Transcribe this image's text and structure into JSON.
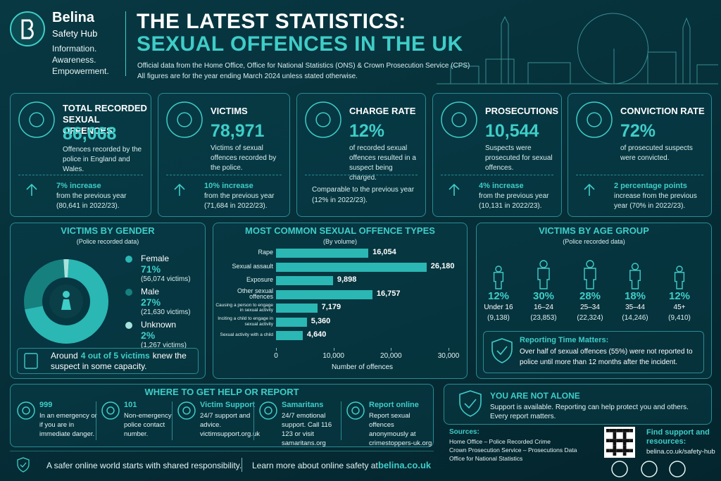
{
  "header": {
    "brand": "Belina",
    "brand_sub": "Safety Hub",
    "tagline": [
      "Information.",
      "Awareness.",
      "Empowerment."
    ],
    "title_1": "THE LATEST STATISTICS:",
    "title_2": "SEXUAL OFFENCES IN THE UK",
    "source_note": "Official data from the Home Office, Office for National Statistics (ONS) & Crown Prosecution Service (CPS)",
    "period_note": "All figures are for the year ending March 2024 unless stated otherwise."
  },
  "stats": [
    {
      "title": "TOTAL RECORDED SEXUAL OFFENCES",
      "value": "86,068",
      "desc": "Offences recorded by the police in England and Wales.",
      "change": "7% increase",
      "change_desc": "from the previous year (80,641 in 2022/23)."
    },
    {
      "title": "VICTIMS",
      "value": "78,971",
      "desc": "Victims of sexual offences recorded by the police.",
      "change": "10% increase",
      "change_desc": "from the previous year (71,684 in 2022/23)."
    },
    {
      "title": "CHARGE RATE",
      "value": "12%",
      "desc": "of recorded sexual offences resulted in a suspect being charged.",
      "note": "Comparable to the previous year (12% in 2022/23)."
    },
    {
      "title": "PROSECUTIONS",
      "value": "10,544",
      "desc": "Suspects were prosecuted for sexual offences.",
      "change": "4% increase",
      "change_desc": "from the previous year (10,131 in 2022/23)."
    },
    {
      "title": "CONVICTION RATE",
      "value": "72%",
      "desc": "of prosecuted suspects were convicted.",
      "change": "2 percentage points",
      "change_desc": "increase from the previous year (70% in 2022/23)."
    }
  ],
  "chart_data": [
    {
      "type": "pie",
      "title": "VICTIMS BY GENDER",
      "subtitle": "(Police recorded data)",
      "categories": [
        "Female",
        "Male",
        "Unknown"
      ],
      "values": [
        71,
        27,
        2
      ],
      "value_labels": [
        "71%",
        "27%",
        "2%"
      ],
      "notes": [
        "(56,074 victims)",
        "(21,630 victims)",
        "(1,267 victims)"
      ],
      "colors": [
        "#2bb7b4",
        "#16807f",
        "#a6e3dc"
      ]
    },
    {
      "type": "bar",
      "orientation": "horizontal",
      "title": "MOST COMMON SEXUAL OFFENCE TYPES",
      "subtitle": "(By volume)",
      "categories": [
        "Rape",
        "Sexual assault",
        "Exposure",
        "Other sexual offences",
        "Causing a person to engage in sexual activity",
        "Inciting a child to engage in sexual activity",
        "Sexual activity with a child"
      ],
      "values": [
        16054,
        26180,
        9898,
        16757,
        7179,
        5360,
        4640
      ],
      "value_labels": [
        "16,054",
        "26,180",
        "9,898",
        "16,757",
        "7,179",
        "5,360",
        "4,640"
      ],
      "color": "#2bb7b4",
      "xlim": [
        0,
        30000
      ],
      "xticks": [
        0,
        {
          "value": 10000,
          "label": "10,000"
        },
        {
          "value": 20000,
          "label": "20,000"
        },
        {
          "value": 30000,
          "label": "30,000"
        }
      ],
      "xlabel": "Number of offences"
    }
  ],
  "gender_note": {
    "before": "Around",
    "highlight": "4 out of 5 victims",
    "after": "knew the suspect in some capacity."
  },
  "age": {
    "title": "VICTIMS BY AGE GROUP",
    "subtitle": "(Police recorded data)",
    "groups": [
      {
        "pct": "12%",
        "label": "Under 16",
        "count": "(9,138)"
      },
      {
        "pct": "30%",
        "label": "16–24",
        "count": "(23,853)"
      },
      {
        "pct": "28%",
        "label": "25–34",
        "count": "(22,324)"
      },
      {
        "pct": "18%",
        "label": "35–44",
        "count": "(14,246)"
      },
      {
        "pct": "12%",
        "label": "45+",
        "count": "(9,410)"
      }
    ],
    "callout_title": "Reporting Time Matters:",
    "callout_text": "Over half of sexual offences (55%) were not reported to police until more than 12 months after the incident."
  },
  "help": {
    "title": "WHERE TO GET HELP OR REPORT",
    "items": [
      {
        "title": "999",
        "text": "In an emergency or if you are in immediate danger."
      },
      {
        "title": "101",
        "text": "Non-emergency police contact number."
      },
      {
        "title": "Victim Support",
        "text": "24/7 support and advice. victimsupport.org.uk"
      },
      {
        "title": "Samaritans",
        "text": "24/7 emotional support. Call 116 123 or visit samaritans.org"
      },
      {
        "title": "Report online",
        "text": "Report sexual offences anonymously at crimestoppers-uk.org"
      }
    ]
  },
  "not_alone": {
    "title": "YOU ARE NOT ALONE",
    "text": "Support is available. Reporting can help protect you and others. Every report matters."
  },
  "sources": {
    "title": "Sources:",
    "lines": [
      "Home Office – Police Recorded Crime",
      "Crown Prosecution Service – Prosecutions Data",
      "Office for National Statistics"
    ]
  },
  "support": {
    "title": "Find support and resources:",
    "url": "belina.co.uk/safety-hub"
  },
  "footer": {
    "left": "A safer online world starts with shared responsibility.",
    "right": "Learn more about online safety at",
    "link": "belina.co.uk"
  }
}
